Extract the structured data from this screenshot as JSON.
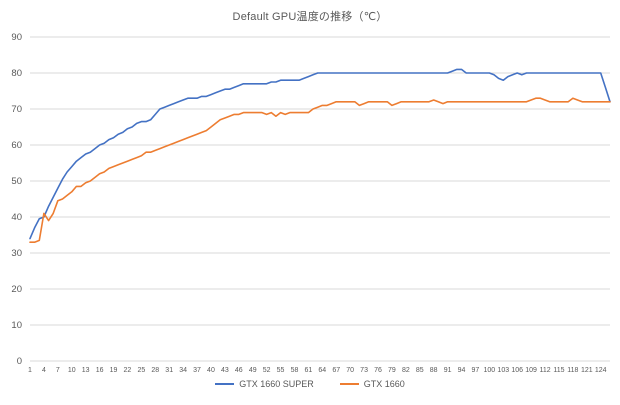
{
  "chart_data": {
    "type": "line",
    "title": "Default GPU温度の推移（℃）",
    "xlabel": "",
    "ylabel": "",
    "ylim": [
      0,
      90
    ],
    "ytick_step": 10,
    "grid": true,
    "legend_position": "bottom",
    "background_color": "#FFFFFF",
    "gridline_color": "#D9D9D9",
    "text_color": "#595959",
    "xticks_shown": [
      1,
      4,
      7,
      10,
      13,
      16,
      19,
      22,
      25,
      28,
      31,
      34,
      37,
      40,
      43,
      46,
      49,
      52,
      55,
      58,
      61,
      64,
      67,
      70,
      73,
      76,
      79,
      82,
      85,
      88,
      91,
      94,
      97,
      100,
      103,
      106,
      109,
      112,
      115,
      118,
      121,
      124
    ],
    "x": [
      1,
      2,
      3,
      4,
      5,
      6,
      7,
      8,
      9,
      10,
      11,
      12,
      13,
      14,
      15,
      16,
      17,
      18,
      19,
      20,
      21,
      22,
      23,
      24,
      25,
      26,
      27,
      28,
      29,
      30,
      31,
      32,
      33,
      34,
      35,
      36,
      37,
      38,
      39,
      40,
      41,
      42,
      43,
      44,
      45,
      46,
      47,
      48,
      49,
      50,
      51,
      52,
      53,
      54,
      55,
      56,
      57,
      58,
      59,
      60,
      61,
      62,
      63,
      64,
      65,
      66,
      67,
      68,
      69,
      70,
      71,
      72,
      73,
      74,
      75,
      76,
      77,
      78,
      79,
      80,
      81,
      82,
      83,
      84,
      85,
      86,
      87,
      88,
      89,
      90,
      91,
      92,
      93,
      94,
      95,
      96,
      97,
      98,
      99,
      100,
      101,
      102,
      103,
      104,
      105,
      106,
      107,
      108,
      109,
      110,
      111,
      112,
      113,
      114,
      115,
      116,
      117,
      118,
      119,
      120,
      121,
      122,
      123,
      124,
      125,
      126
    ],
    "series": [
      {
        "name": "GTX 1660 SUPER",
        "color": "#4472C4",
        "values": [
          34,
          37,
          39.5,
          40,
          43,
          45.5,
          48,
          50.5,
          52.5,
          54,
          55.5,
          56.5,
          57.5,
          58,
          59,
          60,
          60.5,
          61.5,
          62,
          63,
          63.5,
          64.5,
          65,
          66,
          66.5,
          66.5,
          67,
          68.5,
          70,
          70.5,
          71,
          71.5,
          72,
          72.5,
          73,
          73,
          73,
          73.5,
          73.5,
          74,
          74.5,
          75,
          75.5,
          75.5,
          76,
          76.5,
          77,
          77,
          77,
          77,
          77,
          77,
          77.5,
          77.5,
          78,
          78,
          78,
          78,
          78,
          78.5,
          79,
          79.5,
          80,
          80,
          80,
          80,
          80,
          80,
          80,
          80,
          80,
          80,
          80,
          80,
          80,
          80,
          80,
          80,
          80,
          80,
          80,
          80,
          80,
          80,
          80,
          80,
          80,
          80,
          80,
          80,
          80,
          80.5,
          81,
          81,
          80,
          80,
          80,
          80,
          80,
          80,
          79.5,
          78.5,
          78,
          79,
          79.5,
          80,
          79.5,
          80,
          80,
          80,
          80,
          80,
          80,
          80,
          80,
          80,
          80,
          80,
          80,
          80,
          80,
          80,
          80,
          80,
          76,
          72
        ]
      },
      {
        "name": "GTX 1660",
        "color": "#ED7D31",
        "values": [
          33,
          33,
          33.5,
          41,
          39,
          41,
          44.5,
          45,
          46,
          47,
          48.5,
          48.5,
          49.5,
          50,
          51,
          52,
          52.5,
          53.5,
          54,
          54.5,
          55,
          55.5,
          56,
          56.5,
          57,
          58,
          58,
          58.5,
          59,
          59.5,
          60,
          60.5,
          61,
          61.5,
          62,
          62.5,
          63,
          63.5,
          64,
          65,
          66,
          67,
          67.5,
          68,
          68.5,
          68.5,
          69,
          69,
          69,
          69,
          69,
          68.5,
          69,
          68,
          69,
          68.5,
          69,
          69,
          69,
          69,
          69,
          70,
          70.5,
          71,
          71,
          71.5,
          72,
          72,
          72,
          72,
          72,
          71,
          71.5,
          72,
          72,
          72,
          72,
          72,
          71,
          71.5,
          72,
          72,
          72,
          72,
          72,
          72,
          72,
          72.5,
          72,
          71.5,
          72,
          72,
          72,
          72,
          72,
          72,
          72,
          72,
          72,
          72,
          72,
          72,
          72,
          72,
          72,
          72,
          72,
          72,
          72.5,
          73,
          73,
          72.5,
          72,
          72,
          72,
          72,
          72,
          73,
          72.5,
          72,
          72,
          72,
          72,
          72,
          72,
          72
        ]
      }
    ]
  }
}
